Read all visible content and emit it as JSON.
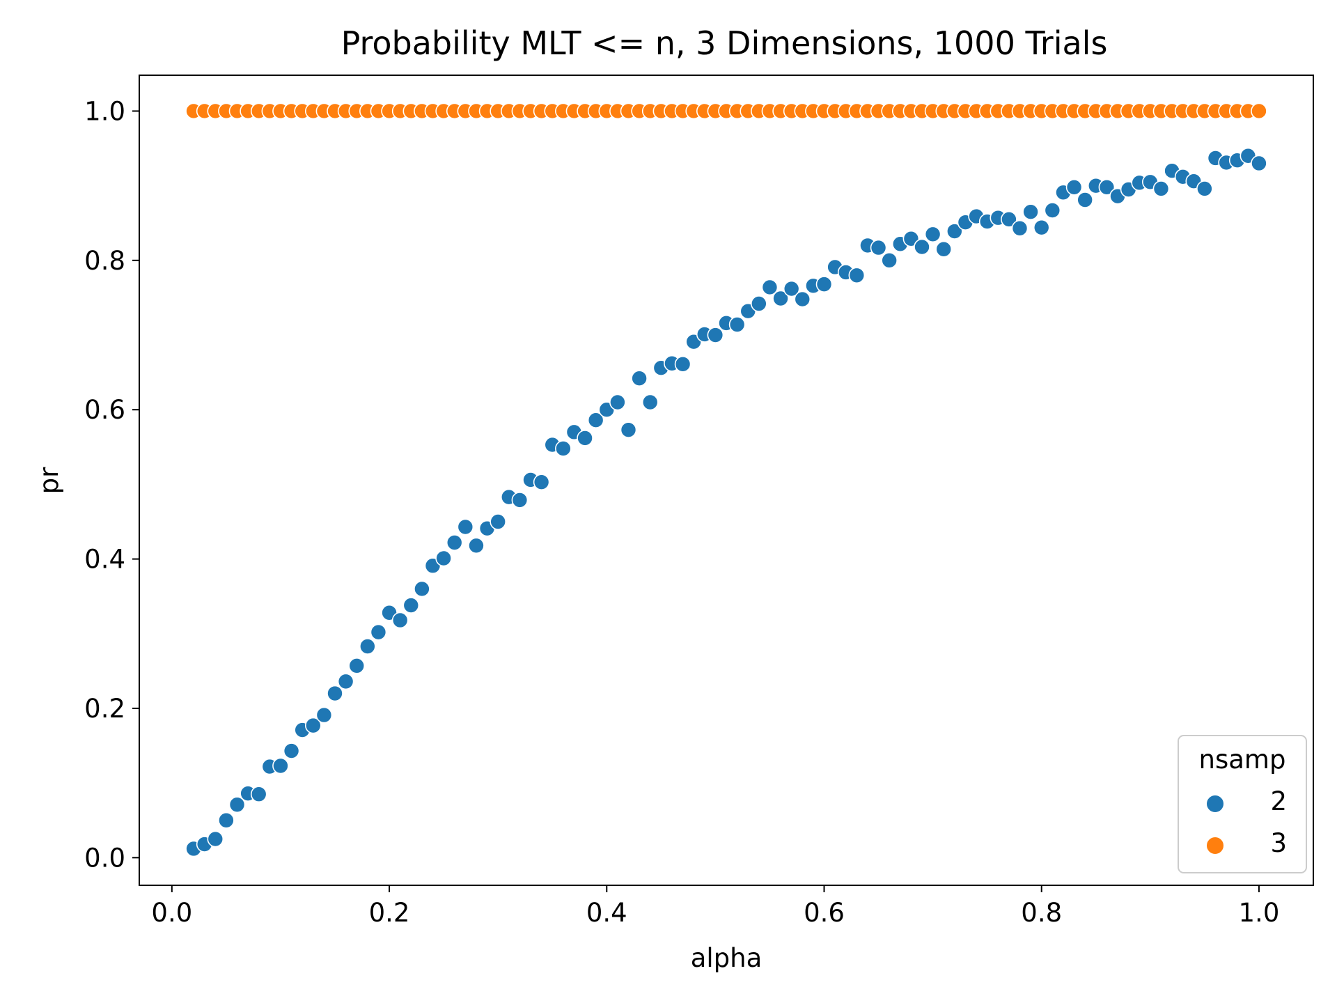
{
  "colors": {
    "series_2": "#1f77b4",
    "series_3": "#ff7f0e",
    "axes": "#000000",
    "marker_edge": "#ffffff"
  },
  "chart_data": {
    "type": "scatter",
    "title": "Probability MLT <= n, 3 Dimensions, 1000 Trials",
    "xlabel": "alpha",
    "ylabel": "pr",
    "xlim": [
      -0.03,
      1.05
    ],
    "ylim": [
      -0.037,
      1.048
    ],
    "xticks": [
      "0.0",
      "0.2",
      "0.4",
      "0.6",
      "0.8",
      "1.0"
    ],
    "yticks": [
      "0.0",
      "0.2",
      "0.4",
      "0.6",
      "0.8",
      "1.0"
    ],
    "grid": false,
    "legend": {
      "title": "nsamp",
      "position": "lower-right",
      "entries": [
        "2",
        "3"
      ]
    },
    "x": [
      0.02,
      0.03,
      0.04,
      0.05,
      0.06,
      0.07,
      0.08,
      0.09,
      0.1,
      0.11,
      0.12,
      0.13,
      0.14,
      0.15,
      0.16,
      0.17,
      0.18,
      0.19,
      0.2,
      0.21,
      0.22,
      0.23,
      0.24,
      0.25,
      0.26,
      0.27,
      0.28,
      0.29,
      0.3,
      0.31,
      0.32,
      0.33,
      0.34,
      0.35,
      0.36,
      0.37,
      0.38,
      0.39,
      0.4,
      0.41,
      0.42,
      0.43,
      0.44,
      0.45,
      0.46,
      0.47,
      0.48,
      0.49,
      0.5,
      0.51,
      0.52,
      0.53,
      0.54,
      0.55,
      0.56,
      0.57,
      0.58,
      0.59,
      0.6,
      0.61,
      0.62,
      0.63,
      0.64,
      0.65,
      0.66,
      0.67,
      0.68,
      0.69,
      0.7,
      0.71,
      0.72,
      0.73,
      0.74,
      0.75,
      0.76,
      0.77,
      0.78,
      0.79,
      0.8,
      0.81,
      0.82,
      0.83,
      0.84,
      0.85,
      0.86,
      0.87,
      0.88,
      0.89,
      0.9,
      0.91,
      0.92,
      0.93,
      0.94,
      0.95,
      0.96,
      0.97,
      0.98,
      0.99,
      1.0
    ],
    "series": [
      {
        "name": "2",
        "color": "#1f77b4",
        "values": [
          0.012,
          0.018,
          0.025,
          0.05,
          0.071,
          0.086,
          0.085,
          0.122,
          0.123,
          0.143,
          0.171,
          0.177,
          0.191,
          0.22,
          0.236,
          0.257,
          0.283,
          0.302,
          0.328,
          0.318,
          0.338,
          0.36,
          0.391,
          0.401,
          0.422,
          0.443,
          0.418,
          0.441,
          0.45,
          0.483,
          0.479,
          0.506,
          0.503,
          0.553,
          0.548,
          0.57,
          0.562,
          0.586,
          0.6,
          0.61,
          0.573,
          0.642,
          0.61,
          0.656,
          0.662,
          0.661,
          0.691,
          0.701,
          0.7,
          0.716,
          0.714,
          0.732,
          0.742,
          0.764,
          0.749,
          0.762,
          0.748,
          0.766,
          0.768,
          0.791,
          0.784,
          0.78,
          0.82,
          0.817,
          0.8,
          0.822,
          0.829,
          0.818,
          0.835,
          0.815,
          0.839,
          0.851,
          0.859,
          0.852,
          0.857,
          0.855,
          0.843,
          0.865,
          0.844,
          0.867,
          0.891,
          0.898,
          0.881,
          0.9,
          0.898,
          0.886,
          0.895,
          0.904,
          0.905,
          0.896,
          0.92,
          0.912,
          0.906,
          0.896,
          0.937,
          0.931,
          0.934,
          0.94,
          0.93
        ]
      },
      {
        "name": "3",
        "color": "#ff7f0e",
        "values": [
          1,
          1,
          1,
          1,
          1,
          1,
          1,
          1,
          1,
          1,
          1,
          1,
          1,
          1,
          1,
          1,
          1,
          1,
          1,
          1,
          1,
          1,
          1,
          1,
          1,
          1,
          1,
          1,
          1,
          1,
          1,
          1,
          1,
          1,
          1,
          1,
          1,
          1,
          1,
          1,
          1,
          1,
          1,
          1,
          1,
          1,
          1,
          1,
          1,
          1,
          1,
          1,
          1,
          1,
          1,
          1,
          1,
          1,
          1,
          1,
          1,
          1,
          1,
          1,
          1,
          1,
          1,
          1,
          1,
          1,
          1,
          1,
          1,
          1,
          1,
          1,
          1,
          1,
          1,
          1,
          1,
          1,
          1,
          1,
          1,
          1,
          1,
          1,
          1,
          1,
          1,
          1,
          1,
          1,
          1,
          1,
          1,
          1,
          1
        ]
      }
    ]
  }
}
